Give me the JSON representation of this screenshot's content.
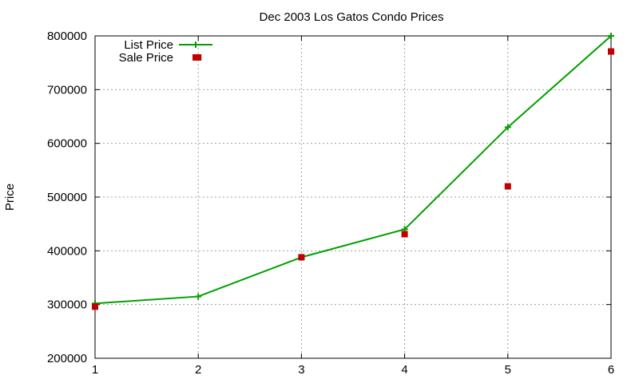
{
  "chart_data": {
    "type": "line",
    "title": "Dec 2003 Los Gatos Condo Prices",
    "xlabel": "",
    "ylabel": "Price",
    "xlim": [
      1,
      6
    ],
    "ylim": [
      200000,
      800000
    ],
    "x_ticks": [
      "1",
      "2",
      "3",
      "4",
      "5",
      "6"
    ],
    "y_ticks": [
      "200000",
      "300000",
      "400000",
      "500000",
      "600000",
      "700000",
      "800000"
    ],
    "grid": true,
    "legend_position": "top-left",
    "x": [
      1,
      2,
      3,
      4,
      5,
      6
    ],
    "series": [
      {
        "name": "List Price",
        "style": "linespoints",
        "marker": "plus",
        "color": "#00a000",
        "values": [
          302000,
          315000,
          388000,
          440000,
          630000,
          800000
        ]
      },
      {
        "name": "Sale Price",
        "style": "points",
        "marker": "square",
        "color": "#c00000",
        "values": [
          296000,
          760000,
          388000,
          431000,
          520000,
          771000
        ]
      }
    ]
  }
}
